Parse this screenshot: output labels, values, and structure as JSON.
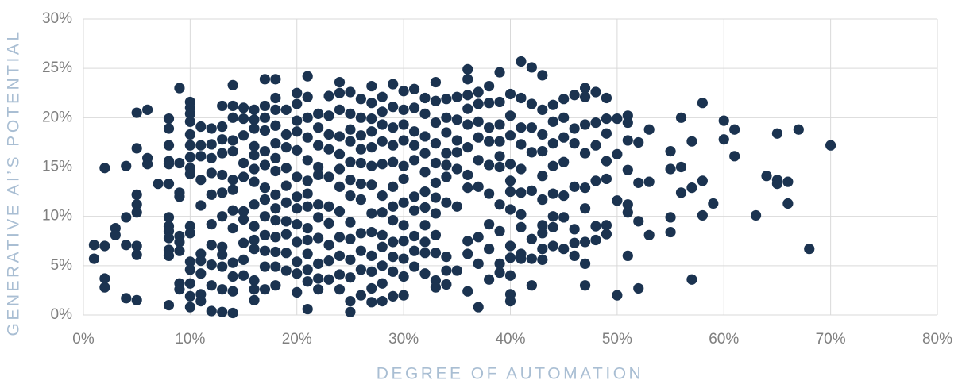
{
  "chart_data": {
    "type": "scatter",
    "xlabel": "DEGREE OF AUTOMATION",
    "ylabel": "GENERATIVE AI’S POTENTIAL",
    "color": "#1b3350",
    "grid": true,
    "xlim": [
      0,
      80
    ],
    "xticks": [
      {
        "value": 0,
        "label": "0%"
      },
      {
        "value": 10,
        "label": "10%"
      },
      {
        "value": 20,
        "label": "20%"
      },
      {
        "value": 30,
        "label": "30%"
      },
      {
        "value": 40,
        "label": "40%"
      },
      {
        "value": 50,
        "label": "50%"
      },
      {
        "value": 60,
        "label": "60%"
      },
      {
        "value": 70,
        "label": "70%"
      },
      {
        "value": 80,
        "label": "80%"
      }
    ],
    "ylim": [
      0,
      30
    ],
    "yticks": [
      {
        "value": 0,
        "label": "0%"
      },
      {
        "value": 5,
        "label": "5%"
      },
      {
        "value": 10,
        "label": "10%"
      },
      {
        "value": 15,
        "label": "15%"
      },
      {
        "value": 20,
        "label": "20%"
      },
      {
        "value": 25,
        "label": "25%"
      },
      {
        "value": 30,
        "label": "30%"
      }
    ],
    "x": [
      1,
      1,
      2,
      2,
      2,
      2,
      3,
      3,
      4,
      4,
      4,
      4,
      5,
      5,
      5,
      5,
      5,
      5,
      5,
      5,
      6,
      6,
      6,
      7,
      8,
      8,
      8,
      8,
      8,
      8,
      8,
      8,
      8,
      8,
      8,
      8,
      8,
      9,
      9,
      9,
      9,
      9,
      9,
      9,
      9,
      9,
      10,
      10,
      10,
      10,
      10,
      10,
      10,
      10,
      10,
      10,
      10,
      10,
      10,
      10,
      10,
      10,
      11,
      11,
      11,
      11,
      11,
      11,
      11,
      11,
      11,
      11,
      12,
      12,
      12,
      12,
      12,
      12,
      12,
      12,
      12,
      12,
      13,
      13,
      13,
      13,
      13,
      13,
      13,
      13,
      13,
      13,
      13,
      13,
      14,
      14,
      14,
      14,
      14,
      14,
      14,
      14,
      14,
      14,
      14,
      14,
      14,
      15,
      15,
      15,
      15,
      15,
      15,
      15,
      15,
      15,
      15,
      16,
      16,
      16,
      16,
      16,
      16,
      16,
      16,
      16,
      16,
      16,
      16,
      16,
      16,
      17,
      17,
      17,
      17,
      17,
      17,
      17,
      17,
      17,
      17,
      17,
      17,
      17,
      18,
      18,
      18,
      18,
      18,
      18,
      18,
      18,
      18,
      18,
      18,
      18,
      18,
      18,
      19,
      19,
      19,
      19,
      19,
      19,
      19,
      19,
      19,
      19,
      20,
      20,
      20,
      20,
      20,
      20,
      20,
      20,
      20,
      20,
      20,
      20,
      20,
      21,
      21,
      21,
      21,
      21,
      21,
      21,
      21,
      21,
      21,
      21,
      21,
      21,
      21,
      22,
      22,
      22,
      22,
      22,
      22,
      22,
      22,
      22,
      22,
      22,
      23,
      23,
      23,
      23,
      23,
      23,
      23,
      23,
      23,
      23,
      24,
      24,
      24,
      24,
      24,
      24,
      24,
      24,
      24,
      24,
      24,
      24,
      25,
      25,
      25,
      25,
      25,
      25,
      25,
      25,
      25,
      25,
      25,
      25,
      25,
      26,
      26,
      26,
      26,
      26,
      26,
      26,
      26,
      26,
      26,
      26,
      27,
      27,
      27,
      27,
      27,
      27,
      27,
      27,
      27,
      27,
      27,
      27,
      27,
      28,
      28,
      28,
      28,
      28,
      28,
      28,
      28,
      28,
      28,
      28,
      28,
      29,
      29,
      29,
      29,
      29,
      29,
      29,
      29,
      29,
      29,
      29,
      29,
      30,
      30,
      30,
      30,
      30,
      30,
      30,
      30,
      30,
      30,
      30,
      30,
      31,
      31,
      31,
      31,
      31,
      31,
      31,
      31,
      31,
      31,
      32,
      32,
      32,
      32,
      32,
      32,
      32,
      32,
      32,
      32,
      32,
      33,
      33,
      33,
      33,
      33,
      33,
      33,
      33,
      33,
      33,
      33,
      33,
      34,
      34,
      34,
      34,
      34,
      34,
      34,
      34,
      34,
      34,
      35,
      35,
      35,
      35,
      35,
      35,
      35,
      36,
      36,
      36,
      36,
      36,
      36,
      36,
      36,
      36,
      36,
      36,
      37,
      37,
      37,
      37,
      37,
      37,
      37,
      37,
      37,
      38,
      38,
      38,
      38,
      38,
      38,
      38,
      38,
      38,
      39,
      39,
      39,
      39,
      39,
      39,
      39,
      39,
      39,
      39,
      40,
      40,
      40,
      40,
      40,
      40,
      40,
      40,
      40,
      40,
      40,
      40,
      41,
      41,
      41,
      41,
      41,
      41,
      41,
      41,
      41,
      41,
      42,
      42,
      42,
      42,
      42,
      42,
      42,
      42,
      43,
      43,
      43,
      43,
      43,
      43,
      43,
      43,
      43,
      43,
      44,
      44,
      44,
      44,
      44,
      44,
      44,
      44,
      45,
      45,
      45,
      45,
      45,
      45,
      45,
      46,
      46,
      46,
      46,
      46,
      46,
      46,
      47,
      47,
      47,
      47,
      47,
      47,
      47,
      47,
      47,
      48,
      48,
      48,
      48,
      48,
      48,
      49,
      49,
      49,
      49,
      49,
      49,
      49,
      50,
      50,
      50,
      50,
      51,
      51,
      51,
      51,
      51,
      51,
      51,
      52,
      52,
      52,
      52,
      53,
      53,
      53,
      55,
      55,
      55,
      55,
      56,
      56,
      56,
      57,
      57,
      57,
      58,
      58,
      58,
      59,
      60,
      60,
      61,
      61,
      63,
      64,
      65,
      65,
      65,
      66,
      66,
      67,
      68,
      70
    ],
    "values": [
      7.1,
      5.7,
      14.9,
      7.0,
      3.7,
      2.8,
      8.8,
      8.1,
      15.1,
      9.9,
      7.1,
      1.7,
      20.5,
      16.9,
      12.2,
      11.2,
      10.4,
      7.0,
      6.1,
      1.5,
      20.8,
      15.9,
      15.3,
      13.3,
      19.9,
      18.9,
      17.2,
      15.6,
      15.3,
      13.3,
      9.9,
      9.0,
      8.5,
      7.8,
      6.6,
      6.0,
      1.0,
      23.0,
      15.4,
      12.4,
      12.0,
      8.0,
      7.4,
      6.5,
      3.2,
      2.6,
      21.6,
      21.0,
      20.4,
      19.6,
      18.3,
      17.2,
      16.0,
      14.9,
      14.3,
      9.0,
      8.3,
      5.4,
      4.6,
      3.2,
      1.9,
      0.8,
      19.1,
      17.2,
      16.1,
      13.7,
      11.1,
      6.2,
      5.5,
      4.2,
      2.1,
      1.4,
      18.9,
      17.3,
      15.9,
      14.4,
      12.2,
      9.2,
      7.1,
      5.1,
      3.0,
      0.4,
      21.2,
      19.1,
      17.8,
      16.4,
      14.2,
      12.4,
      10.0,
      6.9,
      6.1,
      4.9,
      2.6,
      0.3,
      23.3,
      21.2,
      20.0,
      17.7,
      16.6,
      13.7,
      12.7,
      10.6,
      8.8,
      5.3,
      3.9,
      2.4,
      0.2,
      21.0,
      19.9,
      18.2,
      15.4,
      14.0,
      10.5,
      9.7,
      7.3,
      5.6,
      4.0,
      20.8,
      19.8,
      18.9,
      17.1,
      16.2,
      14.8,
      13.5,
      11.2,
      9.0,
      7.6,
      6.7,
      3.5,
      2.6,
      1.5,
      23.9,
      21.2,
      20.0,
      18.7,
      16.6,
      15.2,
      12.9,
      11.7,
      10.0,
      8.1,
      6.5,
      4.9,
      2.6,
      23.9,
      22.0,
      20.8,
      19.2,
      17.4,
      15.9,
      14.6,
      12.2,
      10.8,
      9.6,
      7.9,
      6.4,
      4.9,
      3.0,
      20.8,
      18.3,
      17.0,
      14.9,
      13.1,
      11.4,
      9.5,
      8.2,
      6.3,
      4.5,
      22.5,
      21.4,
      19.7,
      18.6,
      16.7,
      14.0,
      12.0,
      10.8,
      9.2,
      7.4,
      5.4,
      4.2,
      2.3,
      24.2,
      22.1,
      20.0,
      18.0,
      15.7,
      13.6,
      12.3,
      11.0,
      8.8,
      7.6,
      6.2,
      4.6,
      3.4,
      0.6,
      20.4,
      19.0,
      17.2,
      15.0,
      14.2,
      11.2,
      9.9,
      7.8,
      5.2,
      3.7,
      2.6,
      22.2,
      20.2,
      18.3,
      16.8,
      14.0,
      11.0,
      9.3,
      7.1,
      5.5,
      3.6,
      23.6,
      22.5,
      20.8,
      18.1,
      16.3,
      14.8,
      13.0,
      10.5,
      7.9,
      6.0,
      4.1,
      2.6,
      22.6,
      20.4,
      18.8,
      17.6,
      15.5,
      13.7,
      12.1,
      9.4,
      7.7,
      5.6,
      3.8,
      1.4,
      0.3,
      21.9,
      20.0,
      18.2,
      16.8,
      15.4,
      13.3,
      11.7,
      8.3,
      6.5,
      4.6,
      2.0,
      23.2,
      21.5,
      19.9,
      18.6,
      17.0,
      15.1,
      13.2,
      10.3,
      8.4,
      6.0,
      4.4,
      2.7,
      1.3,
      22.1,
      20.6,
      19.3,
      17.6,
      15.3,
      12.1,
      10.4,
      8.1,
      6.9,
      5.0,
      3.2,
      1.4,
      23.4,
      21.1,
      19.0,
      17.2,
      15.5,
      13.0,
      11.0,
      9.6,
      7.4,
      5.9,
      4.4,
      1.9,
      22.7,
      20.8,
      19.3,
      17.7,
      15.1,
      13.8,
      11.4,
      9.1,
      7.5,
      5.7,
      3.9,
      2.0,
      22.9,
      21.0,
      18.6,
      17.2,
      15.7,
      12.0,
      10.6,
      8.0,
      6.5,
      4.9,
      22.0,
      20.4,
      18.1,
      16.4,
      14.5,
      12.5,
      10.9,
      9.1,
      7.4,
      6.3,
      4.2,
      23.6,
      21.7,
      19.5,
      17.4,
      15.4,
      13.4,
      11.9,
      10.3,
      8.1,
      6.3,
      3.5,
      2.8,
      21.9,
      20.0,
      18.5,
      16.4,
      15.2,
      14.0,
      11.4,
      5.9,
      4.5,
      3.1,
      22.1,
      19.8,
      17.7,
      16.5,
      14.8,
      11.0,
      4.5,
      24.9,
      23.9,
      22.3,
      20.9,
      19.3,
      17.0,
      14.2,
      12.9,
      7.5,
      6.2,
      2.4,
      22.6,
      21.4,
      19.6,
      18.0,
      15.7,
      13.0,
      7.9,
      5.2,
      0.8,
      23.2,
      21.5,
      19.0,
      17.6,
      15.2,
      12.3,
      9.2,
      6.7,
      3.6,
      24.6,
      21.6,
      19.3,
      17.6,
      16.1,
      15.0,
      11.2,
      8.5,
      5.2,
      4.3,
      22.4,
      20.2,
      18.2,
      15.3,
      13.6,
      12.5,
      10.7,
      7.0,
      5.8,
      4.0,
      2.1,
      1.4,
      25.7,
      22.0,
      19.0,
      17.3,
      14.8,
      12.4,
      10.2,
      8.9,
      6.2,
      5.7,
      25.1,
      21.4,
      19.0,
      16.5,
      12.6,
      7.7,
      5.7,
      3.0,
      24.3,
      20.8,
      18.3,
      16.6,
      14.1,
      11.7,
      9.1,
      8.3,
      6.7,
      5.6,
      21.3,
      19.6,
      17.4,
      15.1,
      12.3,
      10.0,
      8.9,
      7.0,
      21.9,
      20.0,
      18.0,
      15.5,
      12.1,
      9.9,
      6.7,
      22.3,
      18.9,
      17.4,
      13.0,
      8.7,
      7.3,
      6.0,
      23.0,
      22.1,
      19.3,
      16.4,
      12.9,
      10.8,
      7.4,
      5.2,
      3.0,
      22.6,
      19.5,
      17.2,
      13.6,
      9.0,
      7.6,
      22.0,
      19.9,
      18.4,
      15.6,
      13.8,
      9.1,
      8.2,
      19.9,
      16.3,
      11.6,
      2.0,
      20.2,
      19.5,
      17.7,
      14.7,
      11.2,
      10.4,
      6.0,
      17.5,
      13.4,
      9.5,
      2.7,
      18.8,
      13.5,
      8.1,
      16.6,
      14.8,
      9.9,
      8.4,
      20.0,
      15.0,
      12.4,
      17.6,
      12.9,
      3.6,
      21.5,
      13.6,
      10.1,
      11.3,
      19.7,
      17.8,
      18.8,
      16.1,
      10.1,
      14.1,
      18.4,
      13.7,
      13.3,
      13.5,
      11.3,
      18.8,
      6.7,
      17.2
    ]
  }
}
